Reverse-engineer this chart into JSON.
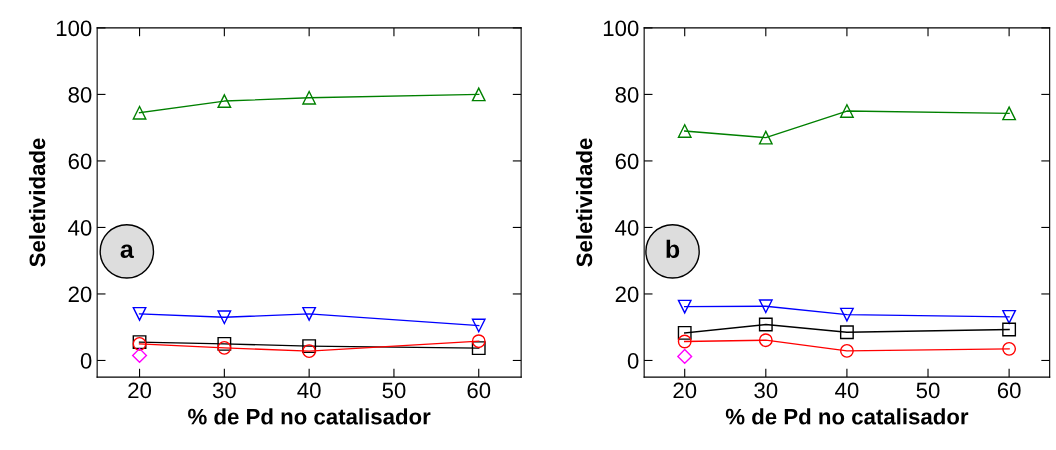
{
  "chart_data": [
    {
      "type": "line",
      "xlabel": "% de Pd no catalisador",
      "ylabel": "Seletividade",
      "annotations": [
        "a"
      ],
      "xlim": [
        15,
        65
      ],
      "ylim": [
        -5,
        100
      ],
      "xticks": [
        20,
        30,
        40,
        50,
        60
      ],
      "yticks": [
        0,
        20,
        40,
        60,
        80,
        100
      ],
      "grid": false,
      "legend": false,
      "line_style": "solid",
      "series": [
        {
          "color": "#008000",
          "marker": "triangle",
          "x": [
            20,
            30,
            40,
            60
          ],
          "values": [
            74.5,
            78,
            79,
            80
          ]
        },
        {
          "color": "#0000ff",
          "marker": "triangle_down",
          "x": [
            20,
            30,
            40,
            60
          ],
          "values": [
            14,
            13,
            14,
            10.5
          ]
        },
        {
          "color": "#000000",
          "marker": "square",
          "x": [
            20,
            30,
            40,
            60
          ],
          "values": [
            5.5,
            5,
            4.3,
            3.7
          ]
        },
        {
          "color": "#ff0000",
          "marker": "circle",
          "x": [
            20,
            30,
            40,
            60
          ],
          "values": [
            5,
            3.8,
            2.8,
            5.8
          ]
        },
        {
          "color": "#ff00ff",
          "marker": "diamond",
          "x": [
            20
          ],
          "values": [
            1.5
          ]
        }
      ]
    },
    {
      "type": "line",
      "xlabel": "% de Pd no catalisador",
      "ylabel": "Seletividade",
      "annotations": [
        "b"
      ],
      "xlim": [
        15,
        65
      ],
      "ylim": [
        -5,
        100
      ],
      "xticks": [
        20,
        30,
        40,
        50,
        60
      ],
      "yticks": [
        0,
        20,
        40,
        60,
        80,
        100
      ],
      "grid": false,
      "legend": false,
      "line_style": "solid",
      "series": [
        {
          "color": "#008000",
          "marker": "triangle",
          "x": [
            20,
            30,
            40,
            60
          ],
          "values": [
            69,
            67,
            75,
            74.3
          ]
        },
        {
          "color": "#0000ff",
          "marker": "triangle_down",
          "x": [
            20,
            30,
            40,
            60
          ],
          "values": [
            16.2,
            16.3,
            13.8,
            13.1
          ]
        },
        {
          "color": "#000000",
          "marker": "square",
          "x": [
            20,
            30,
            40,
            60
          ],
          "values": [
            8.3,
            10.8,
            8.5,
            9.3
          ]
        },
        {
          "color": "#ff0000",
          "marker": "circle",
          "x": [
            20,
            30,
            40,
            60
          ],
          "values": [
            5.7,
            6.1,
            2.9,
            3.5
          ]
        },
        {
          "color": "#ff00ff",
          "marker": "diamond",
          "x": [
            20
          ],
          "values": [
            1.2
          ]
        }
      ]
    }
  ]
}
